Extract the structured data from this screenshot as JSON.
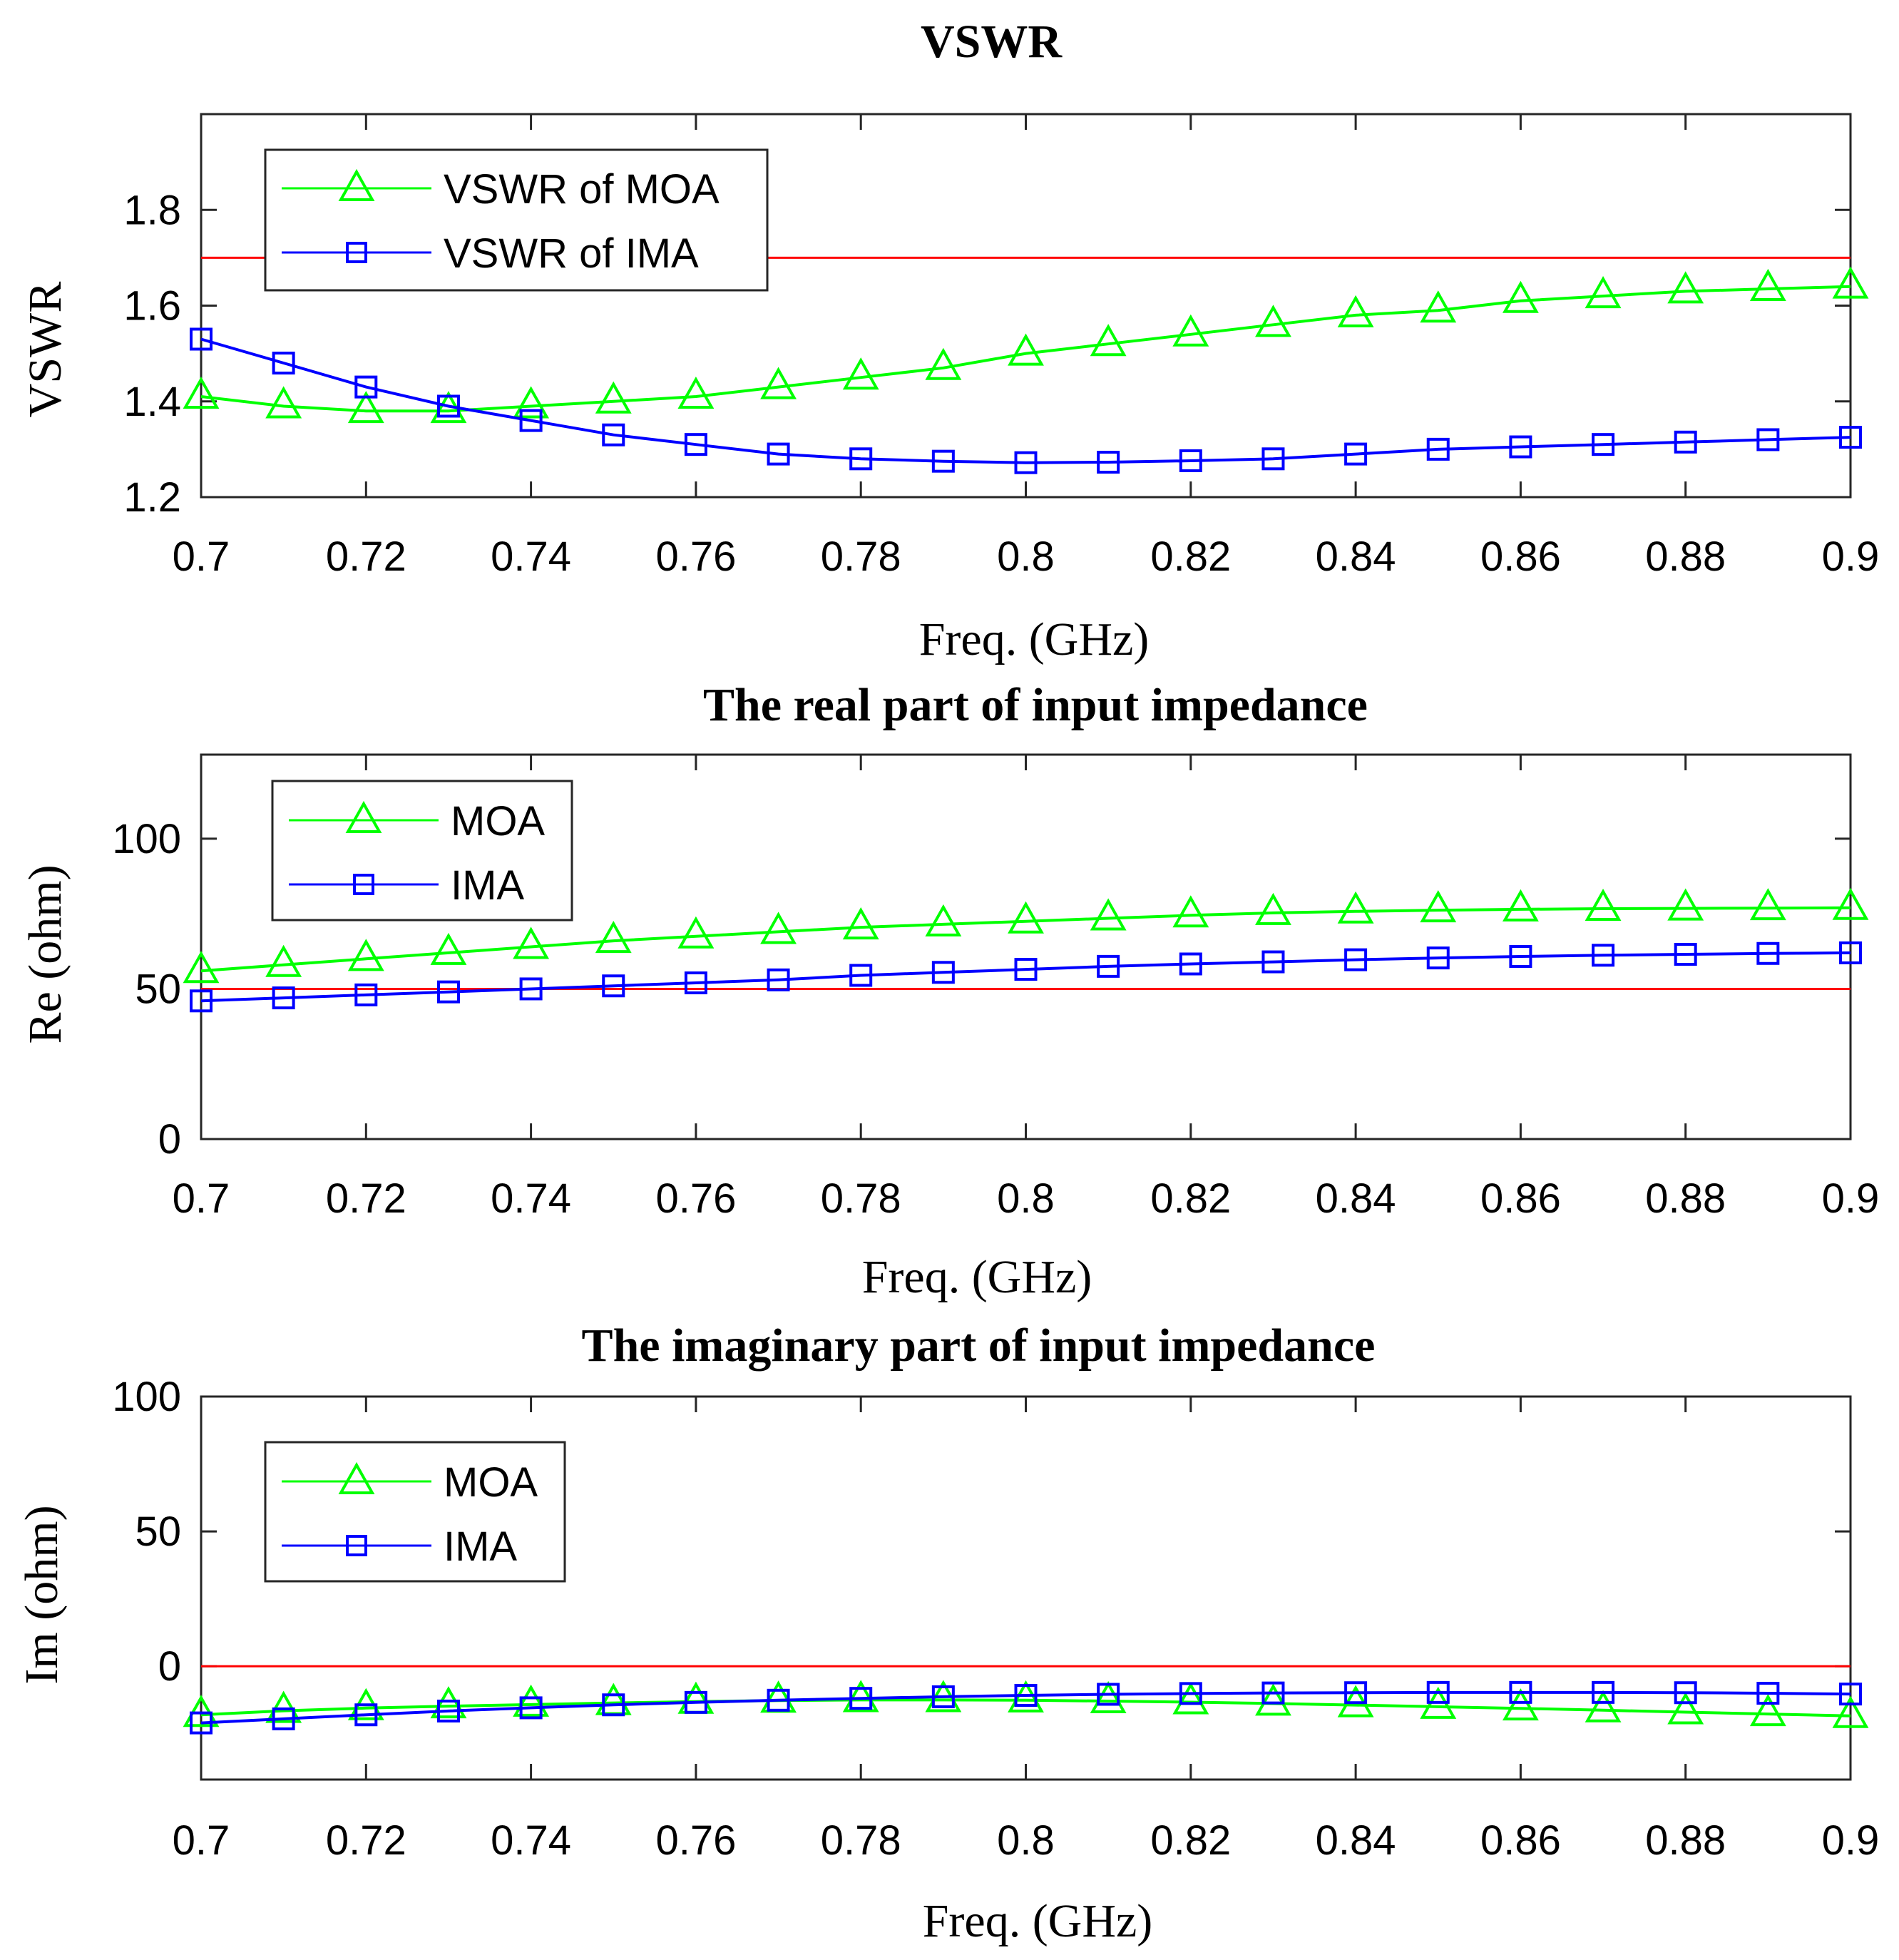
{
  "chart_data": [
    {
      "type": "line",
      "title": "VSWR",
      "xlabel": "Freq. (GHz)",
      "ylabel": "VSWR",
      "xlim": [
        0.7,
        0.9
      ],
      "ylim": [
        1.2,
        2.0
      ],
      "xticks": [
        0.7,
        0.72,
        0.74,
        0.76,
        0.78,
        0.8,
        0.82,
        0.84,
        0.86,
        0.88,
        0.9
      ],
      "xtick_labels": [
        "0.7",
        "0.72",
        "0.74",
        "0.76",
        "0.78",
        "0.8",
        "0.82",
        "0.84",
        "0.86",
        "0.88",
        "0.9"
      ],
      "yticks": [
        1.2,
        1.4,
        1.6,
        1.8
      ],
      "ytick_labels": [
        "1.2",
        "1.4",
        "1.6",
        "1.8"
      ],
      "legend_position": "top-left",
      "x": [
        0.7,
        0.71,
        0.72,
        0.73,
        0.74,
        0.75,
        0.76,
        0.77,
        0.78,
        0.79,
        0.8,
        0.81,
        0.82,
        0.83,
        0.84,
        0.85,
        0.86,
        0.87,
        0.88,
        0.89,
        0.9
      ],
      "reference_line": {
        "y": 1.7,
        "color": "#ff0000"
      },
      "series": [
        {
          "name": "VSWR of MOA",
          "color": "#00ff00",
          "marker": "triangle",
          "values": [
            1.41,
            1.39,
            1.38,
            1.38,
            1.39,
            1.4,
            1.41,
            1.43,
            1.45,
            1.47,
            1.5,
            1.52,
            1.54,
            1.56,
            1.58,
            1.59,
            1.61,
            1.62,
            1.63,
            1.635,
            1.64
          ]
        },
        {
          "name": "VSWR of IMA",
          "color": "#0000ff",
          "marker": "square",
          "values": [
            1.53,
            1.48,
            1.43,
            1.39,
            1.36,
            1.33,
            1.31,
            1.29,
            1.28,
            1.275,
            1.272,
            1.273,
            1.276,
            1.28,
            1.29,
            1.3,
            1.305,
            1.31,
            1.315,
            1.32,
            1.325
          ]
        }
      ]
    },
    {
      "type": "line",
      "title": "The real part of input impedance",
      "xlabel": "Freq. (GHz)",
      "ylabel": "Re (ohm)",
      "xlim": [
        0.7,
        0.9
      ],
      "ylim": [
        0,
        128
      ],
      "xticks": [
        0.7,
        0.72,
        0.74,
        0.76,
        0.78,
        0.8,
        0.82,
        0.84,
        0.86,
        0.88,
        0.9
      ],
      "xtick_labels": [
        "0.7",
        "0.72",
        "0.74",
        "0.76",
        "0.78",
        "0.8",
        "0.82",
        "0.84",
        "0.86",
        "0.88",
        "0.9"
      ],
      "yticks": [
        0,
        50,
        100
      ],
      "ytick_labels": [
        "0",
        "50",
        "100"
      ],
      "legend_position": "top-left",
      "x": [
        0.7,
        0.71,
        0.72,
        0.73,
        0.74,
        0.75,
        0.76,
        0.77,
        0.78,
        0.79,
        0.8,
        0.81,
        0.82,
        0.83,
        0.84,
        0.85,
        0.86,
        0.87,
        0.88,
        0.89,
        0.9
      ],
      "reference_line": {
        "y": 50,
        "color": "#ff0000"
      },
      "series": [
        {
          "name": "MOA",
          "color": "#00ff00",
          "marker": "triangle",
          "values": [
            56,
            58,
            60,
            62,
            64,
            66,
            67.5,
            69,
            70.5,
            71.5,
            72.5,
            73.5,
            74.5,
            75.3,
            75.8,
            76.2,
            76.5,
            76.7,
            76.8,
            76.9,
            77
          ]
        },
        {
          "name": "IMA",
          "color": "#0000ff",
          "marker": "square",
          "values": [
            46,
            47,
            48,
            49,
            50,
            51,
            52,
            53,
            54.5,
            55.5,
            56.5,
            57.5,
            58.3,
            59,
            59.7,
            60.3,
            60.8,
            61.2,
            61.5,
            61.8,
            62
          ]
        }
      ]
    },
    {
      "type": "line",
      "title": "The imaginary part of input impedance",
      "xlabel": "Freq. (GHz)",
      "ylabel": "Im (ohm)",
      "xlim": [
        0.7,
        0.9
      ],
      "ylim": [
        -42,
        100
      ],
      "xticks": [
        0.7,
        0.72,
        0.74,
        0.76,
        0.78,
        0.8,
        0.82,
        0.84,
        0.86,
        0.88,
        0.9
      ],
      "xtick_labels": [
        "0.7",
        "0.72",
        "0.74",
        "0.76",
        "0.78",
        "0.8",
        "0.82",
        "0.84",
        "0.86",
        "0.88",
        "0.9"
      ],
      "yticks": [
        0,
        50,
        100
      ],
      "ytick_labels": [
        "0",
        "50",
        "100"
      ],
      "legend_position": "top-left",
      "x": [
        0.7,
        0.71,
        0.72,
        0.73,
        0.74,
        0.75,
        0.76,
        0.77,
        0.78,
        0.79,
        0.8,
        0.81,
        0.82,
        0.83,
        0.84,
        0.85,
        0.86,
        0.87,
        0.88,
        0.89,
        0.9
      ],
      "reference_line": {
        "y": 0,
        "color": "#ff0000"
      },
      "series": [
        {
          "name": "MOA",
          "color": "#00ff00",
          "marker": "triangle",
          "values": [
            -18,
            -16.5,
            -15.5,
            -14.8,
            -14.2,
            -13.6,
            -13.1,
            -12.7,
            -12.5,
            -12.5,
            -12.6,
            -12.9,
            -13.3,
            -13.8,
            -14.4,
            -15.0,
            -15.6,
            -16.3,
            -17.0,
            -17.7,
            -18.4
          ]
        },
        {
          "name": "IMA",
          "color": "#0000ff",
          "marker": "square",
          "values": [
            -21,
            -19.5,
            -18,
            -16.6,
            -15.4,
            -14.3,
            -13.4,
            -12.6,
            -11.9,
            -11.3,
            -10.8,
            -10.4,
            -10.1,
            -9.9,
            -9.8,
            -9.7,
            -9.7,
            -9.7,
            -9.8,
            -10.0,
            -10.3
          ]
        }
      ]
    }
  ]
}
